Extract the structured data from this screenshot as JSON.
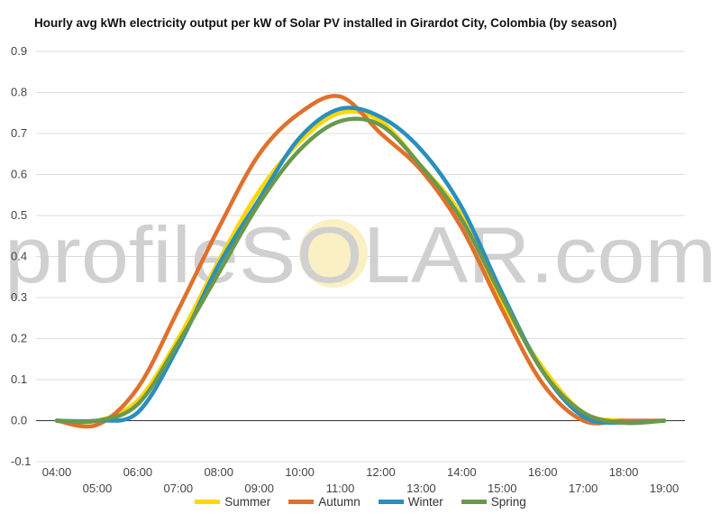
{
  "chart_data": {
    "type": "line",
    "title": "Hourly avg kWh electricity output per kW of Solar PV installed in Girardot City, Colombia (by season)",
    "watermark": "profileSOLAR.com",
    "xlabel": "",
    "ylabel": "",
    "ylim": [
      -0.1,
      0.9
    ],
    "yticks": [
      "-0.1",
      "0.0",
      "0.1",
      "0.2",
      "0.3",
      "0.4",
      "0.5",
      "0.6",
      "0.7",
      "0.8",
      "0.9"
    ],
    "xlim": [
      4,
      19
    ],
    "xticks": [
      "04:00",
      "05:00",
      "06:00",
      "07:00",
      "08:00",
      "09:00",
      "10:00",
      "11:00",
      "12:00",
      "13:00",
      "14:00",
      "15:00",
      "16:00",
      "17:00",
      "18:00",
      "19:00"
    ],
    "x": [
      4,
      5,
      6,
      7,
      8,
      9,
      10,
      11,
      12,
      13,
      14,
      15,
      16,
      17,
      18,
      19
    ],
    "grid": true,
    "legend_position": "bottom",
    "series": [
      {
        "name": "Summer",
        "color": "#FFD700",
        "values": [
          0.0,
          0.0,
          0.05,
          0.2,
          0.39,
          0.56,
          0.68,
          0.75,
          0.73,
          0.62,
          0.5,
          0.29,
          0.13,
          0.02,
          0.0,
          0.0
        ]
      },
      {
        "name": "Autumn",
        "color": "#E0702B",
        "values": [
          0.0,
          -0.01,
          0.08,
          0.27,
          0.47,
          0.65,
          0.75,
          0.79,
          0.7,
          0.61,
          0.47,
          0.27,
          0.09,
          0.0,
          0.0,
          0.0
        ]
      },
      {
        "name": "Winter",
        "color": "#2A8FBD",
        "values": [
          0.0,
          0.0,
          0.02,
          0.18,
          0.38,
          0.54,
          0.69,
          0.76,
          0.74,
          0.66,
          0.52,
          0.31,
          0.12,
          0.01,
          -0.005,
          0.0
        ]
      },
      {
        "name": "Spring",
        "color": "#6A994E",
        "values": [
          0.0,
          0.0,
          0.04,
          0.19,
          0.36,
          0.53,
          0.66,
          0.73,
          0.72,
          0.62,
          0.49,
          0.3,
          0.12,
          0.02,
          -0.005,
          0.0
        ]
      }
    ]
  }
}
